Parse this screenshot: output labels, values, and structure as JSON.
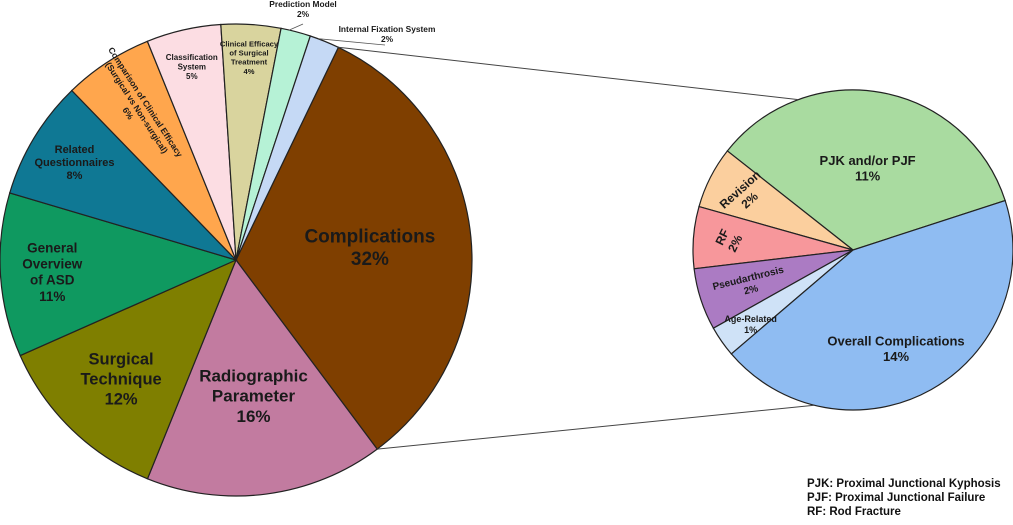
{
  "chart_data": [
    {
      "type": "pie",
      "name": "main",
      "slices": [
        {
          "label": "Complications\n32%",
          "category": "Complications",
          "value": 32,
          "color": "#7f3f00"
        },
        {
          "label": "Radiographic\nParameter\n16%",
          "category": "Radiographic Parameter",
          "value": 16,
          "color": "#c27ba0"
        },
        {
          "label": "Surgical\nTechnique\n12%",
          "category": "Surgical Technique",
          "value": 12,
          "color": "#7f7f00"
        },
        {
          "label": "General\nOverview\nof ASD\n11%",
          "category": "General Overview of ASD",
          "value": 11,
          "color": "#0f9960"
        },
        {
          "label": "Related\nQuestionnaires\n8%",
          "category": "Related Questionnaires",
          "value": 8,
          "color": "#0f7894"
        },
        {
          "label": "Comparison of Clinical Efficacy\n(Surgical vs Non-surgical)\n6%",
          "category": "Comparison of Clinical Efficacy (Surgical vs Non-surgical)",
          "value": 6,
          "color": "#ffa64d"
        },
        {
          "label": "Classification\nSystem\n5%",
          "category": "Classification System",
          "value": 5,
          "color": "#fcdde3"
        },
        {
          "label": "Clinical Efficacy\nof Surgical\nTreatment\n4%",
          "category": "Clinical Efficacy of Surgical Treatment",
          "value": 4,
          "color": "#d9d49e"
        },
        {
          "label": "Prediction Model\n2%",
          "category": "Prediction Model",
          "value": 2,
          "color": "#b6f2d6"
        },
        {
          "label": "Internal Fixation System\n2%",
          "category": "Internal Fixation System",
          "value": 2,
          "color": "#c5d9f5"
        }
      ]
    },
    {
      "type": "pie",
      "name": "complications-breakdown",
      "slices": [
        {
          "label": "PJK and/or PJF\n11%",
          "category": "PJK and/or PJF",
          "value": 11,
          "color": "#a9dba0"
        },
        {
          "label": "Revision\n2%",
          "category": "Revision",
          "value": 2,
          "color": "#fbcf9e"
        },
        {
          "label": "RF\n2%",
          "category": "RF",
          "value": 2,
          "color": "#f7979b"
        },
        {
          "label": "Pseudarthrosis\n2%",
          "category": "Pseudarthrosis",
          "value": 2,
          "color": "#ab7bc3"
        },
        {
          "label": "Age-Related\n1%",
          "category": "Age-Related",
          "value": 1,
          "color": "#cfe2f7"
        },
        {
          "label": "Overall Complications\n14%",
          "category": "Overall Complications",
          "value": 14,
          "color": "#8fbcf2"
        }
      ]
    }
  ],
  "legend": {
    "line1": "PJK: Proximal Junctional Kyphosis",
    "line2": "PJF: Proximal Junctional Failure",
    "line3": "RF:  Rod Fracture"
  }
}
